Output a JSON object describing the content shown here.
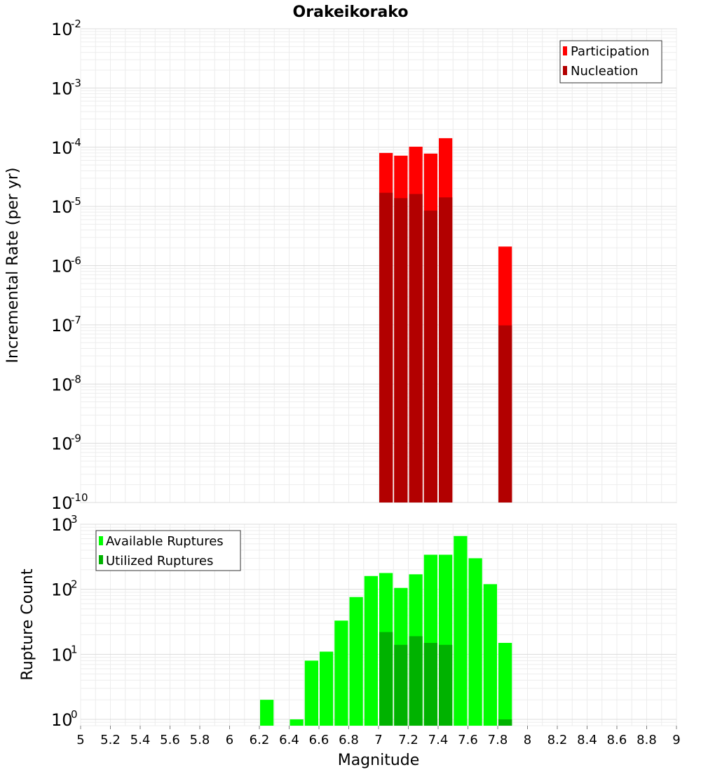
{
  "chart_data": [
    {
      "type": "bar",
      "title": "Orakeikorako",
      "xlabel": "",
      "ylabel": "Incremental Rate (per yr)",
      "yscale": "log",
      "ylim": [
        1e-10,
        0.01
      ],
      "xlim": [
        5,
        9
      ],
      "ytick_base": "10",
      "yticks": [
        {
          "value": 0.01,
          "exp": "-2"
        },
        {
          "value": 0.001,
          "exp": "-3"
        },
        {
          "value": 0.0001,
          "exp": "-4"
        },
        {
          "value": 1e-05,
          "exp": "-5"
        },
        {
          "value": 1e-06,
          "exp": "-6"
        },
        {
          "value": 1e-07,
          "exp": "-7"
        },
        {
          "value": 1e-08,
          "exp": "-8"
        },
        {
          "value": 1e-09,
          "exp": "-9"
        },
        {
          "value": 1e-10,
          "exp": "-10"
        }
      ],
      "legend_position": "top-right",
      "series": [
        {
          "name": "Participation",
          "color": "#ff0000",
          "x": [
            7.05,
            7.15,
            7.25,
            7.35,
            7.45,
            7.85
          ],
          "values": [
            8e-05,
            7.2e-05,
            0.000102,
            7.8e-05,
            0.000142,
            2.1e-06
          ]
        },
        {
          "name": "Nucleation",
          "color": "#b20000",
          "x": [
            7.05,
            7.15,
            7.25,
            7.35,
            7.45,
            7.85
          ],
          "values": [
            1.7e-05,
            1.38e-05,
            1.62e-05,
            8.5e-06,
            1.42e-05,
            9.8e-08
          ]
        }
      ]
    },
    {
      "type": "bar",
      "title": "",
      "xlabel": "Magnitude",
      "ylabel": "Rupture Count",
      "yscale": "log",
      "ylim": [
        0.8,
        1000
      ],
      "xlim": [
        5,
        9
      ],
      "ytick_base": "10",
      "yticks": [
        {
          "value": 1,
          "exp": "0"
        },
        {
          "value": 10,
          "exp": "1"
        },
        {
          "value": 100,
          "exp": "2"
        },
        {
          "value": 1000,
          "exp": "3"
        }
      ],
      "xticks": [
        "5",
        "5.2",
        "5.4",
        "5.6",
        "5.8",
        "6",
        "6.2",
        "6.4",
        "6.6",
        "6.8",
        "7",
        "7.2",
        "7.4",
        "7.6",
        "7.8",
        "8",
        "8.2",
        "8.4",
        "8.6",
        "8.8",
        "9"
      ],
      "legend_position": "top-left",
      "series": [
        {
          "name": "Available Ruptures",
          "color": "#00ff00",
          "x": [
            6.25,
            6.45,
            6.55,
            6.65,
            6.75,
            6.85,
            6.95,
            7.05,
            7.15,
            7.25,
            7.35,
            7.45,
            7.55,
            7.65,
            7.75,
            7.85
          ],
          "values": [
            2,
            1,
            8,
            11,
            33,
            76,
            160,
            178,
            105,
            170,
            340,
            340,
            660,
            300,
            120,
            15
          ]
        },
        {
          "name": "Utilized Ruptures",
          "color": "#00b200",
          "x": [
            7.05,
            7.15,
            7.25,
            7.35,
            7.45,
            7.85
          ],
          "values": [
            22,
            14,
            19,
            15,
            14,
            1
          ]
        }
      ]
    }
  ]
}
